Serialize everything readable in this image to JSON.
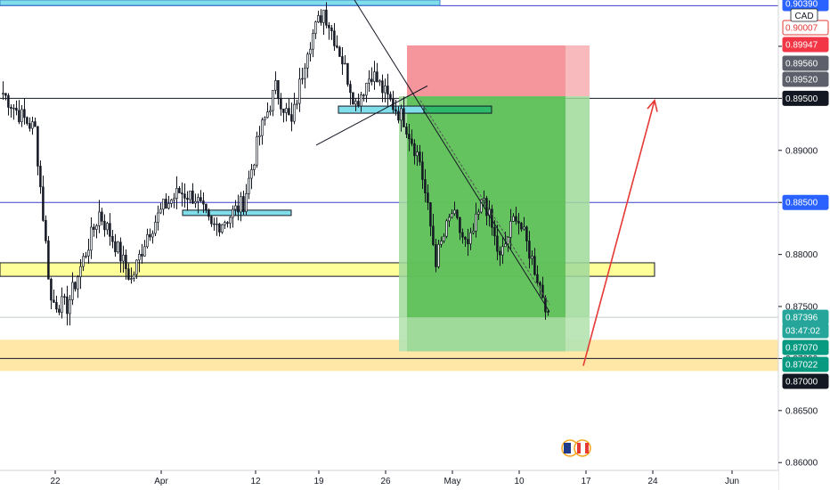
{
  "chart_data": {
    "type": "candlestick",
    "currency_label": "CAD",
    "x_axis": {
      "ticks": [
        "22",
        "Apr",
        "12",
        "19",
        "26",
        "May",
        "10",
        "17",
        "24",
        "Jun"
      ]
    },
    "y_axis": {
      "range": [
        0.8593,
        0.9045
      ],
      "ticks": [
        "0.90000",
        "0.89500",
        "0.89000",
        "0.88500",
        "0.88000",
        "0.87500",
        "0.87000",
        "0.86500",
        "0.86000"
      ],
      "tick_values": [
        0.9,
        0.895,
        0.89,
        0.885,
        0.88,
        0.875,
        0.87,
        0.865,
        0.86
      ]
    },
    "price_badges": [
      {
        "label": "0.90390",
        "value": 0.9039,
        "bg": "#2962ff",
        "fg": "#ffffff"
      },
      {
        "label": "0.90007",
        "value": 0.90007,
        "bg": "#ffffff",
        "fg": "#e53935"
      },
      {
        "label": "0.89947",
        "value": 0.89947,
        "bg": "#f23645",
        "fg": "#ffffff"
      },
      {
        "label": "0.89560",
        "value": 0.8956,
        "bg": "#5d606b",
        "fg": "#ffffff"
      },
      {
        "label": "0.89520",
        "value": 0.8952,
        "bg": "#5d606b",
        "fg": "#ffffff"
      },
      {
        "label": "0.89500",
        "value": 0.895,
        "bg": "#131722",
        "fg": "#ffffff"
      },
      {
        "label": "0.88500",
        "value": 0.885,
        "bg": "#2962ff",
        "fg": "#ffffff"
      },
      {
        "label": "0.87396",
        "value": 0.87396,
        "bg": "#26a69a",
        "fg": "#ffffff"
      },
      {
        "label": "03:47:02",
        "value": 0.87296,
        "bg": "#26a69a",
        "fg": "#ffffff"
      },
      {
        "label": "0.87070",
        "value": 0.8707,
        "bg": "#089981",
        "fg": "#ffffff"
      },
      {
        "label": "0.87022",
        "value": 0.87022,
        "bg": "#089981",
        "fg": "#ffffff"
      },
      {
        "label": "0.87000",
        "value": 0.87,
        "bg": "#131722",
        "fg": "#ffffff"
      }
    ],
    "candles_summary": {
      "start": 0.8955,
      "path": [
        0.8955,
        0.8935,
        0.892,
        0.8755,
        0.875,
        0.8795,
        0.884,
        0.881,
        0.8775,
        0.882,
        0.8845,
        0.886,
        0.8855,
        0.8825,
        0.8835,
        0.885,
        0.8915,
        0.896,
        0.8925,
        0.9,
        0.9035,
        0.8995,
        0.8945,
        0.8975,
        0.895,
        0.893,
        0.889,
        0.8795,
        0.884,
        0.8805,
        0.8855,
        0.8795,
        0.884,
        0.8795,
        0.8745
      ]
    },
    "levels": [
      {
        "name": "blue-top",
        "value": 0.9039,
        "color": "#3f3fd0"
      },
      {
        "name": "black-895",
        "value": 0.895,
        "color": "#131722"
      },
      {
        "name": "blue-885",
        "value": 0.885,
        "color": "#3f3fd0"
      },
      {
        "name": "grey-current",
        "value": 0.87396,
        "color": "#c5cbce"
      },
      {
        "name": "black-870",
        "value": 0.87,
        "color": "#131722"
      }
    ],
    "zones": [
      {
        "name": "yellow-zone",
        "low": 0.8779,
        "high": 0.8792,
        "color": "#ffff99"
      },
      {
        "name": "orange-zone",
        "low": 0.8688,
        "high": 0.8718,
        "color": "#ffe7a8"
      }
    ],
    "position": {
      "entry": 0.8952,
      "stop": 0.8994,
      "target": 0.8707
    },
    "flags_icon": "fx-flags-icon"
  }
}
